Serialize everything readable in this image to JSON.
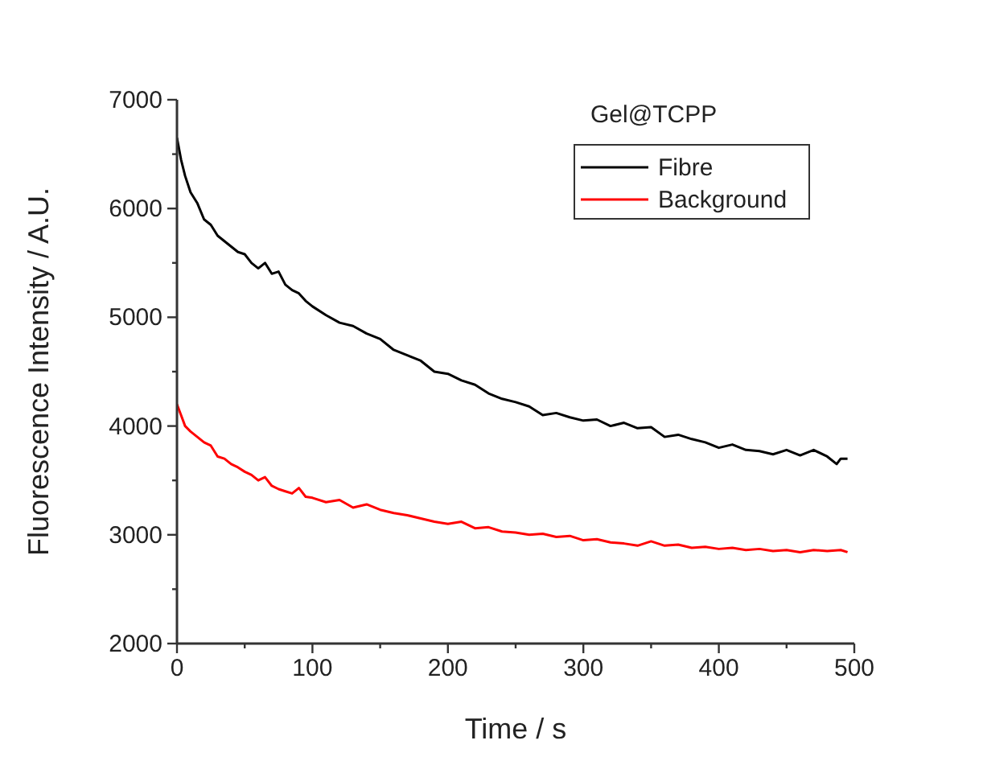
{
  "chart_data": {
    "type": "line",
    "xlabel": "Time / s",
    "ylabel": "Fluorescence Intensity / A.U.",
    "legend_title": "Gel@TCPP",
    "legend": "top right",
    "grid": false,
    "line_style": "solid",
    "xlim": [
      0,
      500
    ],
    "xticks": [
      0,
      {
        "value": 50,
        "label": null
      },
      100,
      {
        "value": 150,
        "label": null
      },
      200,
      {
        "value": 250,
        "label": null
      },
      300,
      {
        "value": 350,
        "label": null
      },
      400,
      {
        "value": 450,
        "label": null
      },
      500
    ],
    "ylim": [
      2000,
      7000
    ],
    "yticks": [
      2000,
      {
        "value": 2500,
        "label": null
      },
      3000,
      {
        "value": 3500,
        "label": null
      },
      4000,
      {
        "value": 4500,
        "label": null
      },
      5000,
      {
        "value": 5500,
        "label": null
      },
      6000,
      {
        "value": 6500,
        "label": null
      },
      7000
    ],
    "series": [
      {
        "name": "Fibre",
        "color": "#000000",
        "x": [
          0,
          3,
          6,
          10,
          15,
          20,
          25,
          30,
          35,
          40,
          45,
          50,
          55,
          60,
          65,
          70,
          75,
          80,
          85,
          90,
          95,
          100,
          110,
          120,
          130,
          140,
          150,
          160,
          170,
          180,
          190,
          200,
          210,
          220,
          230,
          240,
          250,
          260,
          270,
          280,
          290,
          300,
          310,
          320,
          330,
          340,
          350,
          360,
          370,
          380,
          390,
          400,
          410,
          420,
          430,
          440,
          450,
          460,
          470,
          480,
          487,
          490,
          495
        ],
        "values": [
          6650,
          6450,
          6300,
          6150,
          6050,
          5900,
          5850,
          5750,
          5700,
          5650,
          5600,
          5580,
          5500,
          5450,
          5500,
          5400,
          5420,
          5300,
          5250,
          5220,
          5150,
          5100,
          5020,
          4950,
          4920,
          4850,
          4800,
          4700,
          4650,
          4600,
          4500,
          4480,
          4420,
          4380,
          4300,
          4250,
          4220,
          4180,
          4100,
          4120,
          4080,
          4050,
          4060,
          4000,
          4030,
          3980,
          3990,
          3900,
          3920,
          3880,
          3850,
          3800,
          3830,
          3780,
          3770,
          3740,
          3780,
          3730,
          3780,
          3720,
          3650,
          3700,
          3700
        ]
      },
      {
        "name": "Background",
        "color": "#ff0000",
        "x": [
          0,
          3,
          6,
          10,
          15,
          20,
          25,
          30,
          35,
          40,
          45,
          50,
          55,
          60,
          65,
          70,
          75,
          80,
          85,
          90,
          95,
          100,
          110,
          120,
          130,
          140,
          150,
          160,
          170,
          180,
          190,
          200,
          210,
          220,
          230,
          240,
          250,
          260,
          270,
          280,
          290,
          300,
          310,
          320,
          330,
          340,
          350,
          360,
          370,
          380,
          390,
          400,
          410,
          420,
          430,
          440,
          450,
          460,
          470,
          480,
          490,
          495
        ],
        "values": [
          4200,
          4100,
          4000,
          3950,
          3900,
          3850,
          3820,
          3720,
          3700,
          3650,
          3620,
          3580,
          3550,
          3500,
          3530,
          3450,
          3420,
          3400,
          3380,
          3430,
          3350,
          3340,
          3300,
          3320,
          3250,
          3280,
          3230,
          3200,
          3180,
          3150,
          3120,
          3100,
          3120,
          3060,
          3070,
          3030,
          3020,
          3000,
          3010,
          2980,
          2990,
          2950,
          2960,
          2930,
          2920,
          2900,
          2940,
          2900,
          2910,
          2880,
          2890,
          2870,
          2880,
          2860,
          2870,
          2850,
          2860,
          2840,
          2860,
          2850,
          2860,
          2840
        ]
      }
    ]
  }
}
